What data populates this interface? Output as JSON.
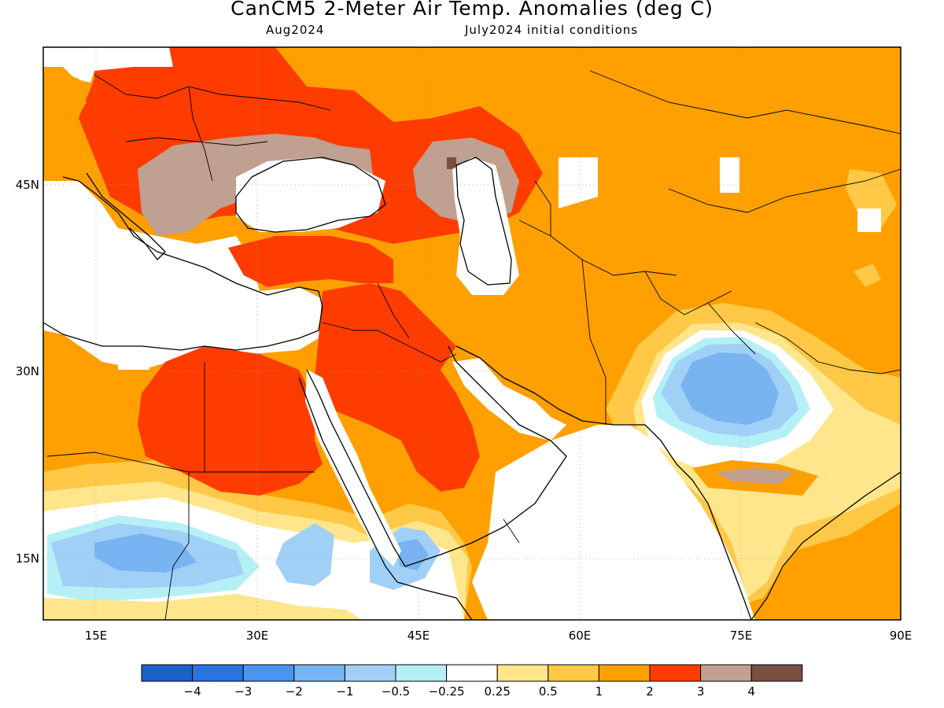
{
  "title": "CanCM5 2-Meter Air Temp. Anomalies (deg C)",
  "subtitle_left": "Aug2024",
  "subtitle_right": "July2024 initial conditions",
  "map": {
    "lon_range": [
      10,
      90
    ],
    "lat_range": [
      10,
      55
    ],
    "lon_ticks": [
      "15E",
      "30E",
      "45E",
      "60E",
      "75E",
      "90E"
    ],
    "lat_ticks": [
      "45N",
      "30N",
      "15N"
    ]
  },
  "colorbar": {
    "colors": [
      "#1f5fc8",
      "#2a74e0",
      "#4a94ee",
      "#78b4f2",
      "#a0d0f6",
      "#b4f0f6",
      "#ffffff",
      "#ffe68c",
      "#ffc846",
      "#ffa000",
      "#ff3c00",
      "#c0a090",
      "#7a5040"
    ],
    "labels": [
      "-4",
      "-3",
      "-2",
      "-1",
      "-0.5",
      "-0.25",
      "0.25",
      "0.5",
      "1",
      "2",
      "3",
      "4"
    ]
  }
}
